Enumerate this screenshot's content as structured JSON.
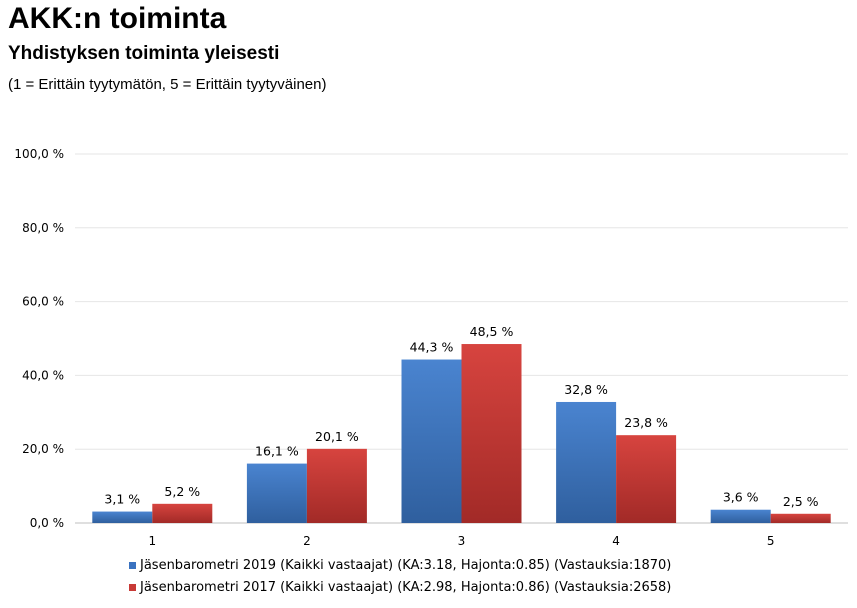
{
  "title": "AKK:n toiminta",
  "subtitle": "Yhdistyksen toiminta yleisesti",
  "note": "(1 = Erittäin tyytymätön, 5 = Erittäin tyytyväinen)",
  "chart_data": {
    "type": "bar",
    "categories": [
      "1",
      "2",
      "3",
      "4",
      "5"
    ],
    "series": [
      {
        "name": "Jäsenbarometri 2019 (Kaikki vastaajat) (KA:3.18, Hajonta:0.85) (Vastauksia:1870)",
        "values": [
          3.1,
          16.1,
          44.3,
          32.8,
          3.6
        ],
        "labels": [
          "3,1 %",
          "16,1 %",
          "44,3 %",
          "32,8 %",
          "3,6 %"
        ],
        "color": "#3a72c0"
      },
      {
        "name": "Jäsenbarometri 2017 (Kaikki vastaajat) (KA:2.98, Hajonta:0.86) (Vastauksia:2658)",
        "values": [
          5.2,
          20.1,
          48.5,
          23.8,
          2.5
        ],
        "labels": [
          "5,2 %",
          "20,1 %",
          "48,5 %",
          "23,8 %",
          "2,5 %"
        ],
        "color": "#c83a36"
      }
    ],
    "ylim": [
      0,
      100
    ],
    "yticks": [
      0,
      20,
      40,
      60,
      80,
      100
    ],
    "ytick_labels": [
      "0,0 %",
      "20,0 %",
      "40,0 %",
      "60,0 %",
      "80,0 %",
      "100,0 %"
    ],
    "grid": true,
    "legend_position": "bottom"
  }
}
